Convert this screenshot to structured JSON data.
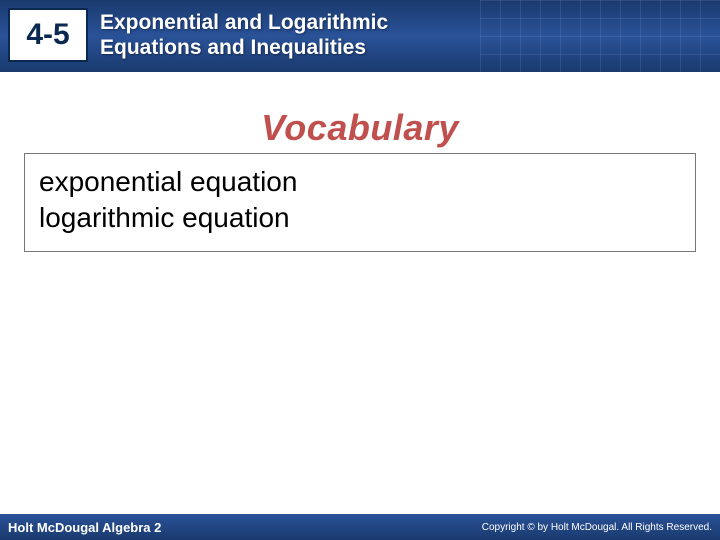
{
  "header": {
    "lesson_number": "4-5",
    "title_line1": "Exponential and Logarithmic",
    "title_line2": "Equations and Inequalities",
    "bg_gradient_top": "#1a3a6e",
    "bg_gradient_mid": "#2a5298",
    "number_box_bg": "#ffffff",
    "number_color": "#0a2850",
    "title_color": "#ffffff"
  },
  "vocabulary": {
    "heading": "Vocabulary",
    "heading_color": "#c0504d",
    "heading_fontsize": 36,
    "items": [
      "exponential equation",
      "logarithmic equation"
    ],
    "item_fontsize": 28,
    "box_border": "#777777"
  },
  "footer": {
    "left_text": "Holt McDougal Algebra 2",
    "right_text": "Copyright © by Holt McDougal. All Rights Reserved.",
    "bg_color": "#1a3a6e",
    "text_color": "#ffffff"
  }
}
